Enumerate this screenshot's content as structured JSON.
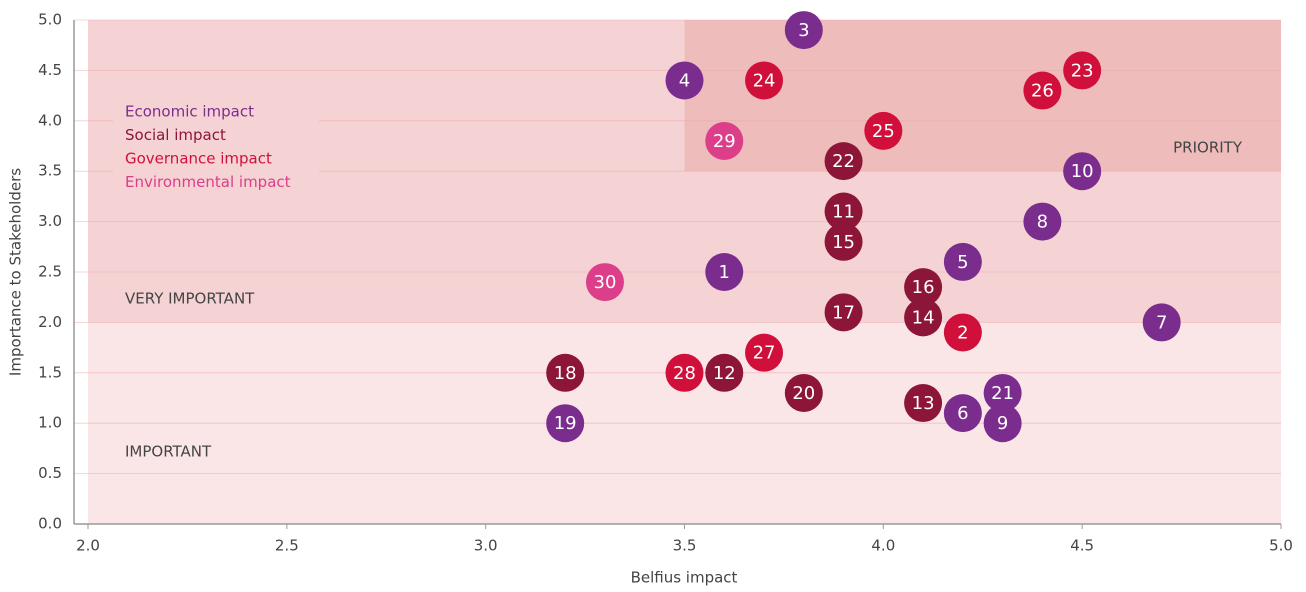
{
  "chart_data": {
    "type": "scatter",
    "xlabel": "Belfius impact",
    "ylabel": "Importance to Stakeholders",
    "xlim": [
      2.0,
      5.0
    ],
    "ylim": [
      0.0,
      5.0
    ],
    "xticks": [
      {
        "value": 2,
        "label": "2.0"
      },
      2.5,
      {
        "value": 3,
        "label": "3.0"
      },
      3.5,
      {
        "value": 4,
        "label": "4.0"
      },
      4.5,
      {
        "value": 5,
        "label": "5.0"
      }
    ],
    "yticks": [
      {
        "value": 0,
        "label": "0.0"
      },
      0.5,
      {
        "value": 1,
        "label": "1.0"
      },
      1.5,
      {
        "value": 2,
        "label": "2.0"
      },
      2.5,
      {
        "value": 3,
        "label": "3.0"
      },
      3.5,
      {
        "value": 4,
        "label": "4.0"
      },
      4.5,
      {
        "value": 5,
        "label": "5.0"
      }
    ],
    "grid": true,
    "legend": "upper left",
    "zones": [
      {
        "label": "IMPORTANT",
        "color": "#fbe6e7",
        "xlim": [
          2.0,
          5.0
        ],
        "ylim": [
          0.0,
          2.0
        ]
      },
      {
        "label": "VERY IMPORTANT",
        "color": "#f5d3d4",
        "xlim": [
          2.0,
          5.0
        ],
        "ylim": [
          2.0,
          5.0
        ]
      },
      {
        "label": "PRIORITY",
        "color": "#efbcbc",
        "xlim": [
          3.5,
          5.0
        ],
        "ylim": [
          3.5,
          5.0
        ]
      }
    ],
    "series": [
      {
        "name": "Economic impact",
        "color": "#7b2d8e",
        "labels": [
          "3",
          "4",
          "10",
          "8",
          "5",
          "1",
          "7",
          "21",
          "6",
          "9",
          "19"
        ],
        "x": [
          3.8,
          3.5,
          4.5,
          4.4,
          4.2,
          3.6,
          4.7,
          4.3,
          4.2,
          4.3,
          3.2
        ],
        "values": [
          4.9,
          4.4,
          3.5,
          3.0,
          2.6,
          2.5,
          2.0,
          1.3,
          1.1,
          1.0,
          1.0
        ]
      },
      {
        "name": "Social impact",
        "color": "#8c1538",
        "labels": [
          "22",
          "11",
          "15",
          "16",
          "17",
          "14",
          "12",
          "20",
          "13",
          "18"
        ],
        "x": [
          3.9,
          3.9,
          3.9,
          4.1,
          3.9,
          4.1,
          3.6,
          3.8,
          4.1,
          3.2
        ],
        "values": [
          3.6,
          3.1,
          2.8,
          2.35,
          2.1,
          2.05,
          1.5,
          1.3,
          1.2,
          1.5
        ]
      },
      {
        "name": "Governance impact",
        "color": "#d0103a",
        "labels": [
          "24",
          "23",
          "26",
          "25",
          "2",
          "27",
          "28"
        ],
        "x": [
          3.7,
          4.5,
          4.4,
          4.0,
          4.2,
          3.7,
          3.5
        ],
        "values": [
          4.4,
          4.5,
          4.3,
          3.9,
          1.9,
          1.7,
          1.5
        ]
      },
      {
        "name": "Environmental impact",
        "color": "#dc3e8a",
        "labels": [
          "29",
          "30"
        ],
        "x": [
          3.6,
          3.3
        ],
        "values": [
          3.8,
          2.4
        ]
      }
    ]
  }
}
